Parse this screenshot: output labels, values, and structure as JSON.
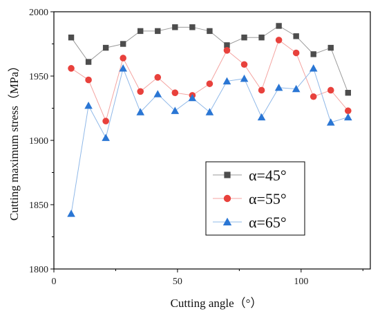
{
  "chart_data": {
    "type": "line",
    "title": "",
    "xlabel": "Cutting angle（°）",
    "ylabel": "Cutting maximum stress（MPa）",
    "xlim": [
      0,
      128
    ],
    "ylim": [
      1800,
      2000
    ],
    "xticks": [
      0,
      50,
      100
    ],
    "yticks": [
      1800,
      1850,
      1900,
      1950,
      2000
    ],
    "grid": false,
    "legend": "center-right",
    "x": [
      7,
      14,
      21,
      28,
      35,
      42,
      49,
      56,
      63,
      70,
      77,
      84,
      91,
      98,
      105,
      112,
      119
    ],
    "series": [
      {
        "name": "α=45°",
        "marker": "square",
        "color": "#4d4d4d",
        "line_color": "#9a9a9a",
        "values": [
          1980,
          1961,
          1972,
          1975,
          1985,
          1985,
          1988,
          1988,
          1985,
          1974,
          1980,
          1980,
          1989,
          1981,
          1967,
          1972,
          1937
        ]
      },
      {
        "name": "α=55°",
        "marker": "circle",
        "color": "#e8413c",
        "line_color": "#f4a3a0",
        "values": [
          1956,
          1947,
          1915,
          1964,
          1938,
          1949,
          1937,
          1935,
          1944,
          1970,
          1959,
          1939,
          1978,
          1968,
          1934,
          1939,
          1923
        ]
      },
      {
        "name": "α=65°",
        "marker": "triangle",
        "color": "#2a76d4",
        "line_color": "#8fb8e8",
        "values": [
          1843,
          1927,
          1902,
          1956,
          1922,
          1936,
          1923,
          1933,
          1922,
          1946,
          1948,
          1918,
          1941,
          1940,
          1956,
          1914,
          1918
        ]
      }
    ]
  }
}
